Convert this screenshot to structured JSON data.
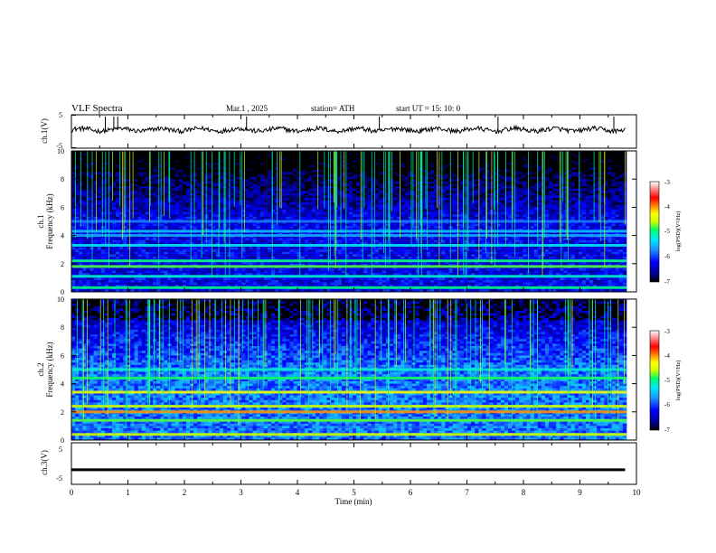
{
  "header": {
    "title": "VLF  Spectra",
    "date": "Mar.1  , 2025",
    "station": "station= ATH",
    "start": "start  UT  =    15: 10: 0"
  },
  "colors": {
    "waveform": "#000000",
    "colormap": [
      "#000000",
      "#00008b",
      "#0000ff",
      "#1e90ff",
      "#00e5ff",
      "#00ff66",
      "#ccff00",
      "#ffff00",
      "#ff8000",
      "#ff0000",
      "#ffffff"
    ]
  },
  "chart_data": [
    {
      "type": "line",
      "name": "channel-1-waveform",
      "ylabel": "ch.1(V)",
      "ylim": [
        -5,
        5
      ],
      "yticks": [
        "5",
        "-5"
      ],
      "xlim": [
        0,
        10
      ],
      "baseline_v": 0.5,
      "spike_times_min": [
        0.6,
        0.75,
        0.82,
        3.1,
        5.45,
        7.55,
        9.6
      ]
    },
    {
      "type": "heatmap",
      "name": "channel-1-spectrogram",
      "ylabel": "ch.1\nFrequency (kHz)",
      "ylim": [
        0,
        10
      ],
      "yticks": [
        "0",
        "2",
        "4",
        "6",
        "8",
        "10"
      ],
      "xlim": [
        0,
        9.8
      ],
      "colorbar": {
        "label": "log(PSD)(V²/Hz)",
        "ticks": [
          "-3",
          "-4",
          "-5",
          "-6",
          "-7"
        ],
        "range": [
          -7,
          -3
        ]
      },
      "noise_floor_level": -6.3,
      "bands_khz": [
        {
          "f": 0.3,
          "level": -5.0
        },
        {
          "f": 1.1,
          "level": -5.2
        },
        {
          "f": 1.8,
          "level": -4.8
        },
        {
          "f": 2.2,
          "level": -5.0
        },
        {
          "f": 3.3,
          "level": -5.3
        },
        {
          "f": 4.0,
          "level": -5.6
        },
        {
          "f": 4.3,
          "level": -5.5
        },
        {
          "f": 5.0,
          "level": -5.8
        }
      ]
    },
    {
      "type": "heatmap",
      "name": "channel-2-spectrogram",
      "ylabel": "ch.2\nFrequency (kHz)",
      "ylim": [
        0,
        10
      ],
      "yticks": [
        "0",
        "2",
        "4",
        "6",
        "8",
        "10"
      ],
      "xlim": [
        0,
        9.8
      ],
      "colorbar": {
        "label": "log(PSD)(V²/Hz)",
        "ticks": [
          "-3",
          "-4",
          "-5",
          "-6",
          "-7"
        ],
        "range": [
          -7,
          -3
        ]
      },
      "noise_floor_level": -5.8,
      "bands_khz": [
        {
          "f": 0.4,
          "level": -4.6
        },
        {
          "f": 1.4,
          "level": -4.8
        },
        {
          "f": 2.0,
          "level": -4.0
        },
        {
          "f": 2.4,
          "level": -4.6
        },
        {
          "f": 3.4,
          "level": -4.4
        },
        {
          "f": 4.4,
          "level": -4.9
        },
        {
          "f": 5.0,
          "level": -5.2
        }
      ]
    },
    {
      "type": "line",
      "name": "channel-3-waveform",
      "ylabel": "ch.3(V)",
      "ylim": [
        -5,
        5
      ],
      "yticks": [
        "5",
        "-5"
      ],
      "xlim": [
        0,
        10
      ],
      "baseline_v": -1.5,
      "xlabel": "Time  (min)",
      "xticks": [
        "0",
        "1",
        "2",
        "3",
        "4",
        "5",
        "6",
        "7",
        "8",
        "9",
        "10"
      ]
    }
  ]
}
